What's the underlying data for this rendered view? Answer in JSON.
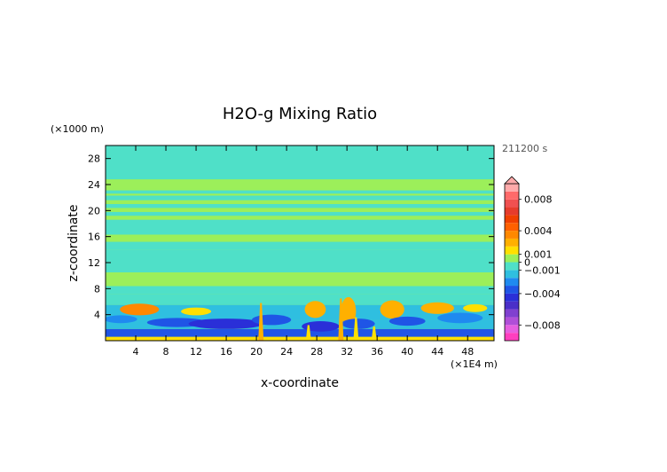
{
  "chart_data": {
    "type": "heatmap",
    "title": "H2O-g Mixing Ratio",
    "time_label": "211200 s",
    "xlabel": "x-coordinate",
    "ylabel": "z-coordinate",
    "x_unit": "(×1E4 m)",
    "y_unit": "(×1000 m)",
    "xlim": [
      0,
      51.5
    ],
    "ylim": [
      0,
      30
    ],
    "x_ticks": [
      4,
      8,
      12,
      16,
      20,
      24,
      28,
      32,
      36,
      40,
      44,
      48
    ],
    "y_ticks": [
      4,
      8,
      12,
      16,
      20,
      24,
      28
    ],
    "grid": false,
    "colorbar": {
      "levels": [
        -0.01,
        -0.009,
        -0.008,
        -0.007,
        -0.006,
        -0.005,
        -0.004,
        -0.003,
        -0.002,
        -0.001,
        0,
        0.001,
        0.002,
        0.003,
        0.004,
        0.005,
        0.006,
        0.007,
        0.008,
        0.009,
        0.01
      ],
      "colors": [
        "#ff3fbf",
        "#e65fe0",
        "#b04fd8",
        "#8040d0",
        "#4a2fc8",
        "#2a2fd8",
        "#1f55e6",
        "#1f8af0",
        "#2fbfe0",
        "#4fe0c8",
        "#9cef5a",
        "#ffe000",
        "#ffb000",
        "#ff8800",
        "#ff6000",
        "#f04000",
        "#e63c2c",
        "#f05050",
        "#ff6a6a",
        "#ffaaaa"
      ],
      "tick_labels": [
        {
          "value": 0.008,
          "text": "0.008"
        },
        {
          "value": 0.004,
          "text": "0.004"
        },
        {
          "value": 0.001,
          "text": "0.001"
        },
        {
          "value": 0,
          "text": "0"
        },
        {
          "value": -0.001,
          "text": "−0.001"
        },
        {
          "value": -0.004,
          "text": "−0.004"
        },
        {
          "value": -0.008,
          "text": "−0.008"
        }
      ],
      "overflow_arrow": "top"
    },
    "field": {
      "background": {
        "from": 0,
        "to": 30,
        "value": 0.0006
      },
      "bands": [
        {
          "from": 0.0,
          "to": 0.6,
          "value": 0.0012
        },
        {
          "from": 0.6,
          "to": 1.8,
          "value": -0.0035
        },
        {
          "from": 1.8,
          "to": 3.2,
          "value": -0.002
        },
        {
          "from": 3.2,
          "to": 5.5,
          "value": -0.0014
        },
        {
          "from": 5.5,
          "to": 7.2,
          "value": -0.0006
        },
        {
          "from": 7.2,
          "to": 8.4,
          "value": -0.0002
        },
        {
          "from": 8.4,
          "to": 10.5,
          "value": 0.0004
        },
        {
          "from": 10.5,
          "to": 14.0,
          "value": -0.0001
        },
        {
          "from": 14.0,
          "to": 15.2,
          "value": -0.0003
        },
        {
          "from": 15.2,
          "to": 16.3,
          "value": 0.0003
        },
        {
          "from": 16.3,
          "to": 18.6,
          "value": -0.0003
        },
        {
          "from": 18.6,
          "to": 19.2,
          "value": 0.0004
        },
        {
          "from": 19.2,
          "to": 19.8,
          "value": -0.0003
        },
        {
          "from": 19.8,
          "to": 20.4,
          "value": 0.0004
        },
        {
          "from": 20.4,
          "to": 21.0,
          "value": -0.0003
        },
        {
          "from": 21.6,
          "to": 22.3,
          "value": -0.0003
        },
        {
          "from": 22.6,
          "to": 23.1,
          "value": -0.0003
        },
        {
          "from": 24.8,
          "to": 30.0,
          "value": -0.0003
        }
      ],
      "blobs": [
        {
          "x": 4.5,
          "z": 4.8,
          "w": 2.6,
          "h": 0.9,
          "value": 0.0032
        },
        {
          "x": 2.0,
          "z": 3.3,
          "w": 2.2,
          "h": 0.6,
          "value": -0.0022
        },
        {
          "x": 9.5,
          "z": 2.8,
          "w": 4.0,
          "h": 0.7,
          "value": -0.0032
        },
        {
          "x": 12.0,
          "z": 4.5,
          "w": 2.0,
          "h": 0.6,
          "value": 0.0018
        },
        {
          "x": 16.0,
          "z": 2.6,
          "w": 5.0,
          "h": 0.8,
          "value": -0.0042
        },
        {
          "x": 22.0,
          "z": 3.2,
          "w": 2.6,
          "h": 0.8,
          "value": -0.0036
        },
        {
          "x": 27.8,
          "z": 4.8,
          "w": 1.4,
          "h": 1.3,
          "value": 0.0028
        },
        {
          "x": 28.5,
          "z": 2.2,
          "w": 2.5,
          "h": 0.8,
          "value": -0.0044
        },
        {
          "x": 32.2,
          "z": 4.5,
          "w": 1.0,
          "h": 2.2,
          "value": 0.0026
        },
        {
          "x": 33.5,
          "z": 2.6,
          "w": 2.2,
          "h": 0.8,
          "value": -0.0032
        },
        {
          "x": 38.0,
          "z": 4.8,
          "w": 1.6,
          "h": 1.4,
          "value": 0.0026
        },
        {
          "x": 40.0,
          "z": 3.0,
          "w": 2.4,
          "h": 0.7,
          "value": -0.0034
        },
        {
          "x": 44.0,
          "z": 5.0,
          "w": 2.2,
          "h": 0.9,
          "value": 0.0022
        },
        {
          "x": 47.0,
          "z": 3.5,
          "w": 3.0,
          "h": 0.8,
          "value": -0.0024
        },
        {
          "x": 49.0,
          "z": 5.0,
          "w": 1.6,
          "h": 0.6,
          "value": 0.0014
        }
      ],
      "columns": [
        {
          "x": 20.6,
          "from": 0,
          "to": 5.8,
          "value": 0.0022
        },
        {
          "x": 26.9,
          "from": 0,
          "to": 2.4,
          "value": 0.0016
        },
        {
          "x": 31.2,
          "from": 0,
          "to": 6.5,
          "value": 0.0026
        },
        {
          "x": 33.2,
          "from": 0,
          "to": 3.6,
          "value": 0.0018
        },
        {
          "x": 35.6,
          "from": 0,
          "to": 2.2,
          "value": 0.0014
        }
      ]
    }
  }
}
